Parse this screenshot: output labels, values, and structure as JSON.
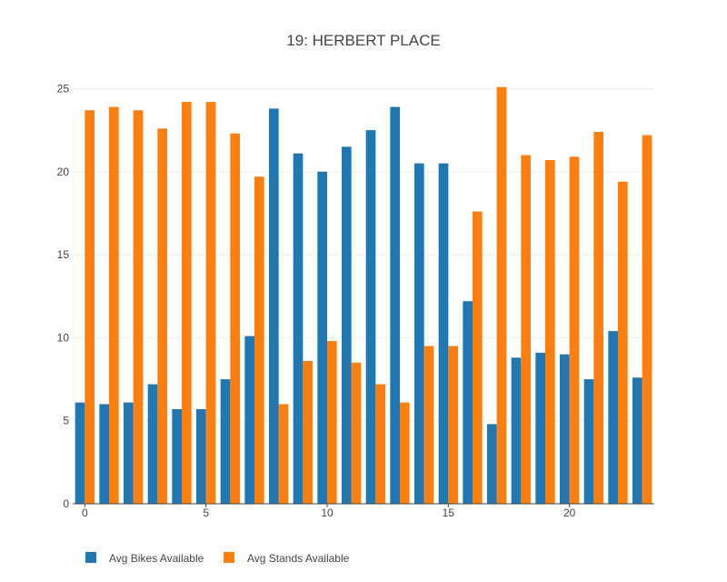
{
  "chart_data": {
    "type": "bar",
    "title": "19: HERBERT PLACE",
    "xlabel": "",
    "ylabel": "",
    "x": [
      0,
      1,
      2,
      3,
      4,
      5,
      6,
      7,
      8,
      9,
      10,
      11,
      12,
      13,
      14,
      15,
      16,
      17,
      18,
      19,
      20,
      21,
      22,
      23
    ],
    "x_ticks": [
      0,
      5,
      10,
      15,
      20
    ],
    "y_ticks": [
      0,
      5,
      10,
      15,
      20,
      25
    ],
    "ylim": [
      0,
      25.3
    ],
    "xlim": [
      -0.5,
      23.5
    ],
    "grid": true,
    "legend_position": "bottom-left",
    "series": [
      {
        "name": "Avg Bikes Available",
        "color": "#1f77b4",
        "values": [
          6.1,
          6.0,
          6.1,
          7.2,
          5.7,
          5.7,
          7.5,
          10.1,
          23.8,
          21.1,
          20.0,
          21.5,
          22.5,
          23.9,
          20.5,
          20.5,
          12.2,
          4.8,
          8.8,
          9.1,
          9.0,
          7.5,
          10.4,
          7.6
        ]
      },
      {
        "name": "Avg Stands Available",
        "color": "#ff7f0e",
        "values": [
          23.7,
          23.9,
          23.7,
          22.6,
          24.2,
          24.2,
          22.3,
          19.7,
          6.0,
          8.6,
          9.8,
          8.5,
          7.2,
          6.1,
          9.5,
          9.5,
          17.6,
          25.1,
          21.0,
          20.7,
          20.9,
          22.4,
          19.4,
          22.2
        ]
      }
    ]
  }
}
